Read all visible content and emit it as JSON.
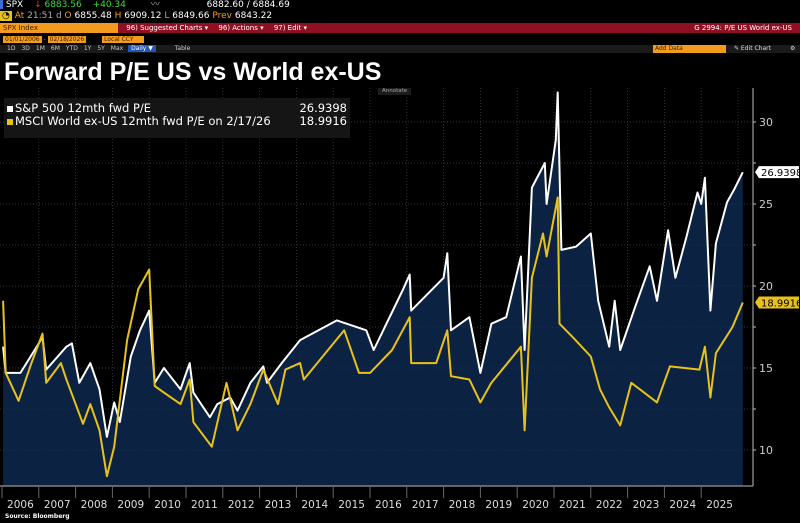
{
  "ticker_bar": {
    "ticker": "SPX",
    "last": "6883.56",
    "change": "+40.34",
    "bid_ask": "6882.60 / 6884.69",
    "at_label": "At",
    "time": "21:51 d",
    "open_label": "O",
    "open": "6855.48",
    "high_label": "H",
    "high": "6909.12",
    "low_label": "L",
    "low": "6849.66",
    "prev_label": "Prev",
    "prev": "6843.22"
  },
  "menu_bar": {
    "security": "SPX Index",
    "suggested": "96) Suggested Charts ▾",
    "actions": "96) Actions ▾",
    "edit": "97) Edit ▾",
    "chart_id": "G 2994: P/E US World ex-US"
  },
  "toolbar": {
    "start_date": "01/01/2006",
    "end_date": "02/18/2026",
    "currency": "Local CCY",
    "ranges": [
      "1D",
      "3D",
      "1M",
      "6M",
      "YTD",
      "1Y",
      "5Y",
      "Max"
    ],
    "frequency": "Daily ▼",
    "table": "Table",
    "add_data": "Add Data",
    "edit_chart": "✎ Edit Chart",
    "annotate": "Annotate"
  },
  "title": "Forward P/E US vs World ex-US",
  "source": "Source: Bloomberg",
  "colors": {
    "spx": "#ffffff",
    "msci": "#e8c21a",
    "fill": "#0b2242",
    "red_bar": "#8e1022",
    "orange": "#f39b1c"
  },
  "chart_data": {
    "type": "line",
    "title": "Forward P/E US vs World ex-US",
    "ylim": [
      8,
      32
    ],
    "yticks": [
      10,
      15,
      20,
      25,
      30
    ],
    "xticks": [
      "2006",
      "2007",
      "2008",
      "2009",
      "2010",
      "2011",
      "2012",
      "2013",
      "2014",
      "2015",
      "2016",
      "2017",
      "2018",
      "2019",
      "2020",
      "2021",
      "2022",
      "2023",
      "2024",
      "2025"
    ],
    "grid": true,
    "legend_position": "top-left",
    "series": [
      {
        "name": "S&P 500 12mth fwd P/E",
        "last_value": "26.9398",
        "color": "#ffffff",
        "fill_below": true,
        "points": [
          [
            2006.03,
            16.3
          ],
          [
            2006.1,
            14.7
          ],
          [
            2006.5,
            14.7
          ],
          [
            2007.0,
            16.5
          ],
          [
            2007.1,
            16.9
          ],
          [
            2007.2,
            14.9
          ],
          [
            2007.75,
            16.3
          ],
          [
            2007.9,
            16.5
          ],
          [
            2008.1,
            14.1
          ],
          [
            2008.4,
            15.3
          ],
          [
            2008.65,
            13.7
          ],
          [
            2008.85,
            10.8
          ],
          [
            2009.05,
            12.9
          ],
          [
            2009.2,
            11.7
          ],
          [
            2009.5,
            15.7
          ],
          [
            2009.75,
            17.3
          ],
          [
            2010.0,
            18.5
          ],
          [
            2010.15,
            14.1
          ],
          [
            2010.4,
            15.0
          ],
          [
            2010.85,
            13.7
          ],
          [
            2011.1,
            15.3
          ],
          [
            2011.2,
            13.5
          ],
          [
            2011.65,
            12.0
          ],
          [
            2011.85,
            12.8
          ],
          [
            2012.2,
            13.2
          ],
          [
            2012.4,
            12.4
          ],
          [
            2012.75,
            14.1
          ],
          [
            2013.1,
            15.1
          ],
          [
            2013.2,
            14.1
          ],
          [
            2013.6,
            15.3
          ],
          [
            2014.1,
            16.7
          ],
          [
            2015.1,
            17.9
          ],
          [
            2015.9,
            17.3
          ],
          [
            2016.1,
            16.1
          ],
          [
            2016.9,
            19.8
          ],
          [
            2017.08,
            20.7
          ],
          [
            2017.12,
            18.5
          ],
          [
            2018.0,
            20.5
          ],
          [
            2018.1,
            22.0
          ],
          [
            2018.2,
            17.3
          ],
          [
            2018.7,
            18.1
          ],
          [
            2019.0,
            14.7
          ],
          [
            2019.3,
            17.7
          ],
          [
            2019.7,
            18.1
          ],
          [
            2020.1,
            21.8
          ],
          [
            2020.2,
            16.1
          ],
          [
            2020.4,
            26.0
          ],
          [
            2020.75,
            27.5
          ],
          [
            2020.8,
            25.0
          ],
          [
            2021.05,
            28.9
          ],
          [
            2021.1,
            31.8
          ],
          [
            2021.2,
            22.2
          ],
          [
            2021.6,
            22.4
          ],
          [
            2022.0,
            23.2
          ],
          [
            2022.2,
            19.1
          ],
          [
            2022.5,
            16.3
          ],
          [
            2022.65,
            19.1
          ],
          [
            2022.8,
            16.1
          ],
          [
            2023.2,
            18.7
          ],
          [
            2023.6,
            21.2
          ],
          [
            2023.8,
            19.1
          ],
          [
            2024.1,
            23.4
          ],
          [
            2024.3,
            20.5
          ],
          [
            2024.6,
            23.0
          ],
          [
            2024.9,
            25.7
          ],
          [
            2025.0,
            25.0
          ],
          [
            2025.1,
            26.6
          ],
          [
            2025.25,
            18.5
          ],
          [
            2025.4,
            22.6
          ],
          [
            2025.7,
            25.1
          ],
          [
            2025.9,
            25.9
          ],
          [
            2026.13,
            26.9398
          ]
        ]
      },
      {
        "name": "MSCI World ex-US 12mth fwd P/E on 2/17/26",
        "last_value": "18.9916",
        "color": "#e8c21a",
        "fill_below": false,
        "points": [
          [
            2006.03,
            19.1
          ],
          [
            2006.1,
            14.7
          ],
          [
            2006.45,
            13.0
          ],
          [
            2006.8,
            15.3
          ],
          [
            2007.1,
            17.1
          ],
          [
            2007.2,
            14.1
          ],
          [
            2007.6,
            15.3
          ],
          [
            2007.75,
            14.3
          ],
          [
            2008.2,
            11.6
          ],
          [
            2008.4,
            12.8
          ],
          [
            2008.65,
            11.2
          ],
          [
            2008.85,
            8.4
          ],
          [
            2009.05,
            10.2
          ],
          [
            2009.4,
            16.7
          ],
          [
            2009.7,
            19.8
          ],
          [
            2010.0,
            21.0
          ],
          [
            2010.15,
            13.9
          ],
          [
            2010.4,
            13.5
          ],
          [
            2010.85,
            12.8
          ],
          [
            2011.1,
            14.3
          ],
          [
            2011.2,
            11.7
          ],
          [
            2011.7,
            10.2
          ],
          [
            2012.1,
            14.1
          ],
          [
            2012.4,
            11.2
          ],
          [
            2012.75,
            12.8
          ],
          [
            2013.1,
            14.9
          ],
          [
            2013.5,
            12.8
          ],
          [
            2013.7,
            14.9
          ],
          [
            2014.1,
            15.3
          ],
          [
            2014.2,
            14.3
          ],
          [
            2015.3,
            17.3
          ],
          [
            2015.7,
            14.7
          ],
          [
            2016.0,
            14.7
          ],
          [
            2016.6,
            16.1
          ],
          [
            2017.08,
            18.1
          ],
          [
            2017.12,
            15.3
          ],
          [
            2017.8,
            15.3
          ],
          [
            2018.1,
            17.3
          ],
          [
            2018.2,
            14.5
          ],
          [
            2018.7,
            14.3
          ],
          [
            2019.0,
            12.9
          ],
          [
            2019.3,
            14.1
          ],
          [
            2020.1,
            16.3
          ],
          [
            2020.2,
            11.2
          ],
          [
            2020.4,
            20.5
          ],
          [
            2020.7,
            23.2
          ],
          [
            2020.8,
            21.8
          ],
          [
            2021.1,
            25.4
          ],
          [
            2021.15,
            17.7
          ],
          [
            2021.5,
            16.9
          ],
          [
            2022.0,
            15.7
          ],
          [
            2022.25,
            13.7
          ],
          [
            2022.5,
            12.6
          ],
          [
            2022.8,
            11.5
          ],
          [
            2023.1,
            14.1
          ],
          [
            2023.8,
            12.9
          ],
          [
            2024.15,
            15.1
          ],
          [
            2024.95,
            14.9
          ],
          [
            2025.1,
            16.3
          ],
          [
            2025.25,
            13.2
          ],
          [
            2025.4,
            15.9
          ],
          [
            2025.85,
            17.5
          ],
          [
            2026.13,
            18.9916
          ]
        ]
      }
    ]
  }
}
